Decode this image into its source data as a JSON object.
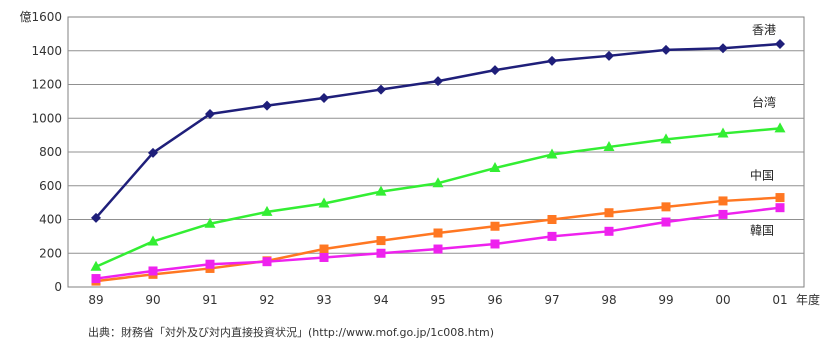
{
  "chart_data": {
    "type": "line",
    "title": "",
    "ylabel": "億円",
    "xlabel": "年度",
    "ylim": [
      0,
      1600
    ],
    "yticks": [
      0,
      200,
      400,
      600,
      800,
      1000,
      1200,
      1400,
      1600
    ],
    "yticks_text": [
      "0",
      "200",
      "400",
      "600",
      "800",
      "1000",
      "1200",
      "1400",
      "億1600"
    ],
    "grid": true,
    "categories": [
      "89",
      "90",
      "91",
      "92",
      "93",
      "94",
      "95",
      "96",
      "97",
      "98",
      "99",
      "00",
      "01"
    ],
    "series": [
      {
        "name": "香港",
        "color": "#1f1f7a",
        "marker": "diamond",
        "values": [
          410,
          795,
          1025,
          1075,
          1120,
          1170,
          1220,
          1285,
          1340,
          1370,
          1405,
          1415,
          1440
        ]
      },
      {
        "name": "台湾",
        "color": "#33ee33",
        "marker": "triangle",
        "values": [
          120,
          270,
          375,
          445,
          495,
          565,
          615,
          705,
          785,
          830,
          875,
          910,
          940
        ]
      },
      {
        "name": "中国",
        "color": "#ff7722",
        "marker": "square",
        "values": [
          35,
          75,
          110,
          155,
          225,
          275,
          320,
          360,
          400,
          440,
          475,
          510,
          530
        ]
      },
      {
        "name": "韓国",
        "color": "#ee22ee",
        "marker": "square",
        "values": [
          50,
          95,
          135,
          150,
          175,
          200,
          225,
          255,
          300,
          330,
          385,
          430,
          470
        ]
      }
    ]
  },
  "source_note": "出典：財務省「対外及び対内直接投資状況」(http://www.mof.go.jp/1c008.htm)"
}
